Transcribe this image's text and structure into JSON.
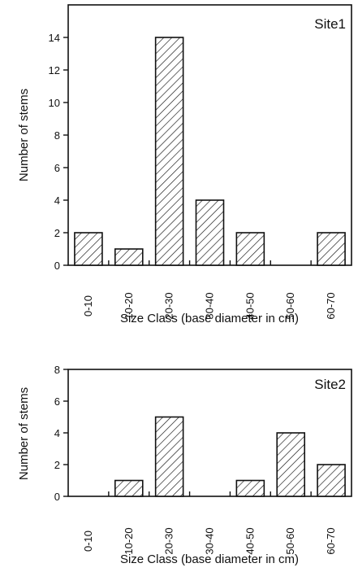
{
  "chart_data": [
    {
      "type": "bar",
      "title": "Site1",
      "xlabel": "Size Class (base diameter in cm)",
      "ylabel": "Number of stems",
      "ylim": [
        0,
        16
      ],
      "yticks": [
        0,
        2,
        4,
        6,
        8,
        10,
        12,
        14
      ],
      "grid": false,
      "categories": [
        "0-10",
        "10-20",
        "20-30",
        "30-40",
        "40-50",
        "50-60",
        "60-70"
      ],
      "values": [
        2,
        1,
        14,
        4,
        2,
        0,
        2
      ],
      "bar_fill": "diagonal-hatch"
    },
    {
      "type": "bar",
      "title": "Site2",
      "xlabel": "Size Class (base diameter in cm)",
      "ylabel": "Number of stems",
      "ylim": [
        0,
        8
      ],
      "yticks": [
        0,
        2,
        4,
        6,
        8
      ],
      "grid": false,
      "categories": [
        "0-10",
        "10-20",
        "20-30",
        "30-40",
        "40-50",
        "50-60",
        "60-70"
      ],
      "values": [
        0,
        1,
        5,
        0,
        1,
        4,
        2
      ],
      "bar_fill": "diagonal-hatch"
    }
  ],
  "colors": {
    "ink": "#111111",
    "background": "#ffffff"
  }
}
